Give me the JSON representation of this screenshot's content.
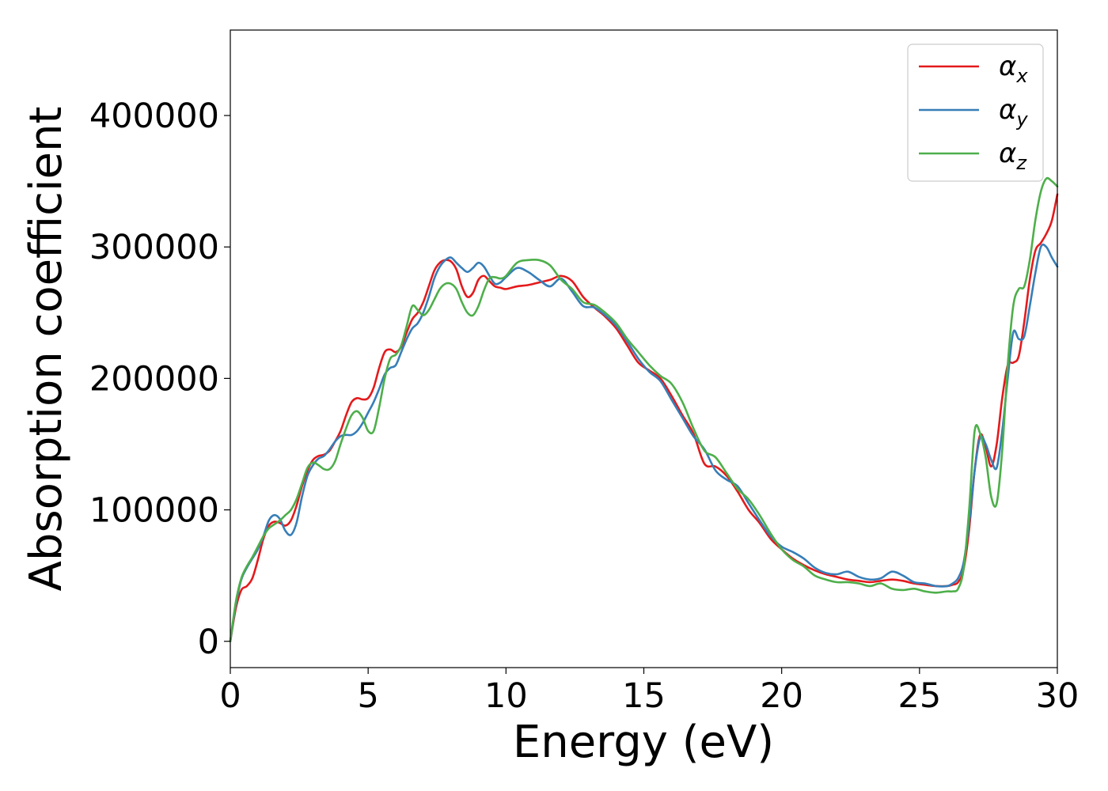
{
  "chart_data": {
    "type": "line",
    "xlabel": "Energy (eV)",
    "ylabel": "Absorption coefficient",
    "xlim": [
      0,
      30
    ],
    "ylim": [
      -20000,
      465000
    ],
    "xticks": [
      "0",
      "5",
      "10",
      "15",
      "20",
      "25",
      "30"
    ],
    "yticks": [
      "0",
      "100000",
      "200000",
      "300000",
      "400000"
    ],
    "legend_position": "top-right",
    "series": [
      {
        "name": "αx",
        "label_base": "α",
        "label_sub": "x",
        "color": "#e41a1c",
        "x": [
          0,
          0.2,
          0.4,
          0.6,
          0.8,
          1.0,
          1.2,
          1.4,
          1.6,
          1.8,
          2.0,
          2.2,
          2.4,
          2.6,
          2.8,
          3.0,
          3.2,
          3.4,
          3.6,
          3.8,
          4.0,
          4.2,
          4.4,
          4.6,
          4.8,
          5.0,
          5.2,
          5.4,
          5.6,
          5.8,
          6.0,
          6.2,
          6.4,
          6.6,
          6.8,
          7.0,
          7.2,
          7.4,
          7.6,
          7.8,
          8.0,
          8.2,
          8.4,
          8.6,
          8.8,
          9.0,
          9.2,
          9.4,
          9.6,
          9.8,
          10.0,
          10.4,
          10.8,
          11.2,
          11.6,
          12.0,
          12.4,
          12.8,
          13.2,
          13.6,
          14.0,
          14.4,
          14.8,
          15.2,
          15.6,
          16.0,
          16.4,
          16.8,
          17.2,
          17.6,
          18.0,
          18.4,
          18.8,
          19.2,
          19.6,
          20.0,
          20.4,
          20.8,
          21.2,
          21.6,
          22.0,
          22.4,
          22.8,
          23.2,
          23.6,
          24.0,
          24.4,
          24.8,
          25.2,
          25.6,
          26.0,
          26.2,
          26.4,
          26.6,
          26.8,
          27.0,
          27.2,
          27.4,
          27.6,
          27.8,
          28.0,
          28.2,
          28.4,
          28.6,
          28.8,
          29.0,
          29.2,
          29.4,
          29.6,
          29.8,
          30.0
        ],
        "values": [
          0,
          25000,
          39000,
          42000,
          48000,
          62000,
          78000,
          88000,
          91000,
          90000,
          88000,
          92000,
          103000,
          118000,
          130000,
          138000,
          141000,
          142000,
          145000,
          152000,
          160000,
          172000,
          182000,
          185000,
          184000,
          185000,
          193000,
          208000,
          220000,
          222000,
          220000,
          224000,
          235000,
          245000,
          250000,
          258000,
          270000,
          282000,
          288000,
          290000,
          289000,
          283000,
          270000,
          262000,
          265000,
          275000,
          278000,
          274000,
          270000,
          269000,
          268000,
          270000,
          271000,
          273000,
          275000,
          278000,
          274000,
          262000,
          254000,
          247000,
          238000,
          225000,
          212000,
          206000,
          200000,
          187000,
          172000,
          158000,
          135000,
          133000,
          126000,
          114000,
          100000,
          90000,
          78000,
          70000,
          63000,
          58000,
          54000,
          51000,
          49000,
          47000,
          46000,
          45000,
          46000,
          47000,
          46000,
          44000,
          43000,
          42000,
          42000,
          43000,
          45000,
          55000,
          85000,
          130000,
          157000,
          148000,
          133000,
          150000,
          185000,
          210000,
          212000,
          217000,
          243000,
          275000,
          297000,
          303000,
          310000,
          320000,
          340000
        ]
      },
      {
        "name": "αy",
        "label_base": "α",
        "label_sub": "y",
        "color": "#377eb8",
        "x": [
          0,
          0.2,
          0.4,
          0.6,
          0.8,
          1.0,
          1.2,
          1.4,
          1.6,
          1.8,
          2.0,
          2.2,
          2.4,
          2.6,
          2.8,
          3.0,
          3.2,
          3.4,
          3.6,
          3.8,
          4.0,
          4.2,
          4.4,
          4.6,
          4.8,
          5.0,
          5.2,
          5.4,
          5.6,
          5.8,
          6.0,
          6.2,
          6.4,
          6.6,
          6.8,
          7.0,
          7.2,
          7.4,
          7.6,
          7.8,
          8.0,
          8.2,
          8.4,
          8.6,
          8.8,
          9.0,
          9.2,
          9.4,
          9.6,
          9.8,
          10.0,
          10.4,
          10.8,
          11.2,
          11.6,
          12.0,
          12.4,
          12.8,
          13.2,
          13.6,
          14.0,
          14.4,
          14.8,
          15.2,
          15.6,
          16.0,
          16.4,
          16.8,
          17.2,
          17.6,
          18.0,
          18.4,
          18.8,
          19.2,
          19.6,
          20.0,
          20.4,
          20.8,
          21.2,
          21.6,
          22.0,
          22.4,
          22.8,
          23.2,
          23.6,
          24.0,
          24.4,
          24.8,
          25.2,
          25.6,
          26.0,
          26.2,
          26.4,
          26.6,
          26.8,
          27.0,
          27.2,
          27.4,
          27.6,
          27.8,
          28.0,
          28.2,
          28.4,
          28.6,
          28.8,
          29.0,
          29.2,
          29.4,
          29.6,
          29.8,
          30.0
        ],
        "values": [
          0,
          28000,
          47000,
          56000,
          63000,
          70000,
          80000,
          92000,
          96000,
          93000,
          84000,
          81000,
          90000,
          110000,
          126000,
          134000,
          139000,
          141000,
          146000,
          152000,
          156000,
          157000,
          157000,
          160000,
          166000,
          174000,
          182000,
          192000,
          203000,
          208000,
          210000,
          220000,
          230000,
          238000,
          242000,
          250000,
          262000,
          276000,
          285000,
          290000,
          292000,
          288000,
          284000,
          281000,
          284000,
          288000,
          285000,
          278000,
          272000,
          273000,
          277000,
          284000,
          281000,
          275000,
          270000,
          276000,
          266000,
          255000,
          254000,
          248000,
          240000,
          228000,
          215000,
          205000,
          198000,
          184000,
          170000,
          156000,
          146000,
          130000,
          123000,
          118000,
          105000,
          92000,
          80000,
          72000,
          68000,
          63000,
          56000,
          52000,
          51000,
          53000,
          49000,
          47000,
          48000,
          53000,
          50000,
          45000,
          44000,
          42000,
          42000,
          44000,
          48000,
          60000,
          90000,
          130000,
          155000,
          150000,
          138000,
          132000,
          160000,
          200000,
          235000,
          230000,
          232000,
          255000,
          280000,
          300000,
          300000,
          292000,
          285000
        ]
      },
      {
        "name": "αz",
        "label_base": "α",
        "label_sub": "z",
        "color": "#4daf4a",
        "x": [
          0,
          0.2,
          0.4,
          0.6,
          0.8,
          1.0,
          1.2,
          1.4,
          1.6,
          1.8,
          2.0,
          2.2,
          2.4,
          2.6,
          2.8,
          3.0,
          3.2,
          3.4,
          3.6,
          3.8,
          4.0,
          4.2,
          4.4,
          4.6,
          4.8,
          5.0,
          5.2,
          5.4,
          5.6,
          5.8,
          6.0,
          6.2,
          6.4,
          6.6,
          6.8,
          7.0,
          7.2,
          7.4,
          7.6,
          7.8,
          8.0,
          8.2,
          8.4,
          8.6,
          8.8,
          9.0,
          9.2,
          9.4,
          9.6,
          9.8,
          10.0,
          10.4,
          10.8,
          11.2,
          11.6,
          12.0,
          12.4,
          12.8,
          13.2,
          13.6,
          14.0,
          14.4,
          14.8,
          15.2,
          15.6,
          16.0,
          16.4,
          16.8,
          17.2,
          17.6,
          18.0,
          18.4,
          18.8,
          19.2,
          19.6,
          20.0,
          20.4,
          20.8,
          21.2,
          21.6,
          22.0,
          22.4,
          22.8,
          23.2,
          23.6,
          24.0,
          24.4,
          24.8,
          25.2,
          25.6,
          26.0,
          26.2,
          26.4,
          26.6,
          26.8,
          27.0,
          27.2,
          27.4,
          27.6,
          27.8,
          28.0,
          28.2,
          28.4,
          28.6,
          28.8,
          29.0,
          29.2,
          29.4,
          29.6,
          29.8,
          30.0
        ],
        "values": [
          0,
          30000,
          48000,
          57000,
          64000,
          72000,
          80000,
          86000,
          89000,
          92000,
          96000,
          100000,
          108000,
          120000,
          132000,
          136000,
          134000,
          131000,
          131000,
          137000,
          150000,
          162000,
          172000,
          175000,
          170000,
          160000,
          160000,
          178000,
          200000,
          215000,
          218000,
          225000,
          240000,
          255000,
          252000,
          248000,
          252000,
          260000,
          268000,
          272000,
          272000,
          268000,
          258000,
          250000,
          248000,
          255000,
          267000,
          276000,
          277000,
          276000,
          278000,
          288000,
          290000,
          290000,
          286000,
          275000,
          268000,
          258000,
          256000,
          250000,
          242000,
          230000,
          220000,
          210000,
          202000,
          196000,
          182000,
          162000,
          145000,
          140000,
          128000,
          116000,
          108000,
          96000,
          82000,
          70000,
          62000,
          57000,
          50000,
          47000,
          45000,
          45000,
          44000,
          42000,
          44000,
          40000,
          39000,
          40000,
          38000,
          37000,
          38000,
          38000,
          40000,
          55000,
          100000,
          160000,
          158000,
          140000,
          110000,
          105000,
          145000,
          210000,
          255000,
          268000,
          270000,
          290000,
          320000,
          342000,
          352000,
          350000,
          346000
        ]
      }
    ]
  }
}
